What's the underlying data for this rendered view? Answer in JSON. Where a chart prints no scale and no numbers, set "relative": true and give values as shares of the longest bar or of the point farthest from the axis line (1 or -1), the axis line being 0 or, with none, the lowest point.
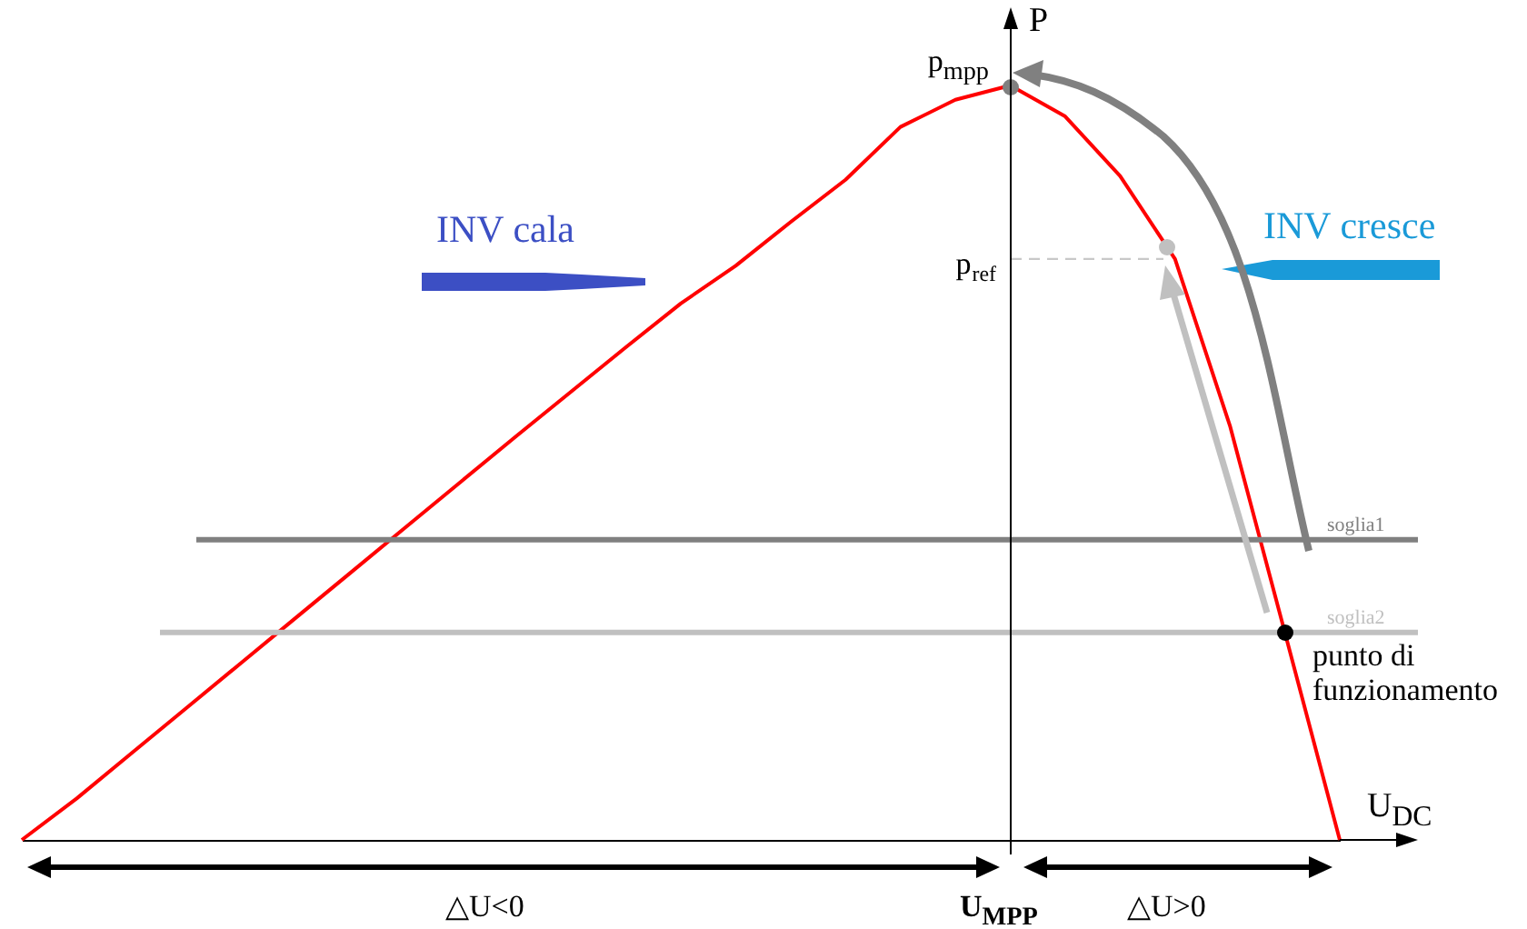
{
  "chart_data": {
    "type": "line",
    "relative": true,
    "xlabel": "U$_{DC}$",
    "ylabel": "P",
    "categories": [
      null,
      null,
      null,
      null,
      null,
      null,
      null,
      null,
      null,
      null,
      null,
      null,
      null,
      null,
      null,
      null,
      null,
      null,
      null,
      null,
      null,
      null,
      null,
      null,
      null
    ],
    "series": [
      {
        "color": "#ff0000",
        "values": [
          0,
          0.055,
          0.115,
          0.175,
          0.235,
          0.295,
          0.355,
          0.415,
          0.475,
          0.535,
          0.594,
          0.653,
          0.711,
          0.761,
          0.819,
          0.875,
          0.945,
          0.981,
          1,
          0.959,
          0.88,
          0.77,
          0.549,
          0.275,
          0
        ]
      }
    ],
    "ref_lines": [
      {
        "axis": "y",
        "value": 0.398,
        "label": "soglia1",
        "color": "#808080"
      },
      {
        "axis": "y",
        "value": 0.275,
        "label": "soglia2",
        "color": "#c0c0c0"
      },
      {
        "axis": "y",
        "value": 0.77,
        "label": "p$_{ref}$",
        "color": "#c8c8c8",
        "line_style": "dashed"
      }
    ],
    "annotations": [
      "INV cala",
      "INV cresce",
      "p$_{mpp}$",
      "punto di funzionamento",
      "U$_{MPP}$",
      "△U<0",
      "△U>0"
    ]
  }
}
